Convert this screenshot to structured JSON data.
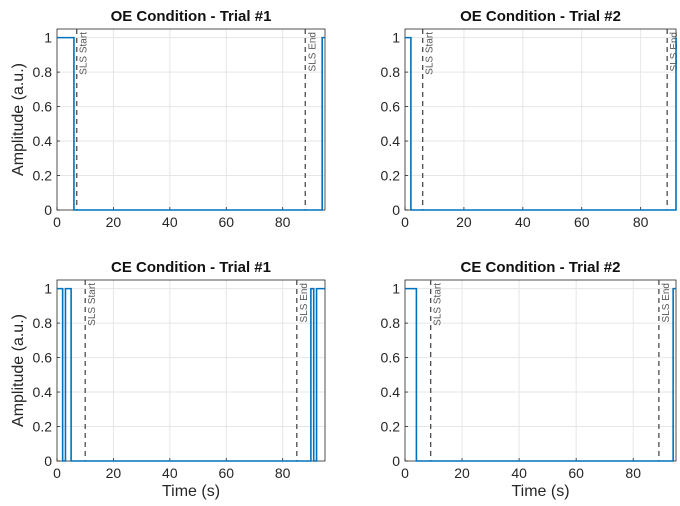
{
  "colors": {
    "signal": "#0072BD",
    "marker": "#4d4d4d",
    "grid": "#e6e6e6",
    "axis": "#262626"
  },
  "chart_data": [
    {
      "type": "line",
      "title": "OE Condition - Trial #1",
      "xlabel": "",
      "ylabel": "Amplitude (a.u.)",
      "xlim": [
        0,
        95
      ],
      "ylim": [
        0,
        1.05
      ],
      "xticks": [
        0,
        20,
        40,
        60,
        80
      ],
      "yticks": [
        0,
        0.2,
        0.4,
        0.6,
        0.8,
        1
      ],
      "xtick_labels": [
        "0",
        "20",
        "40",
        "60",
        "80"
      ],
      "ytick_labels": [
        "0",
        "0.2",
        "0.4",
        "0.6",
        "0.8",
        "1"
      ],
      "grid": true,
      "series": [
        {
          "x": [
            0,
            6,
            6,
            94,
            94,
            95
          ],
          "y": [
            1,
            1,
            0,
            0,
            1,
            1
          ]
        }
      ],
      "annotations": [
        {
          "x": 7,
          "label": "SLS Start"
        },
        {
          "x": 88,
          "label": "SLS End"
        }
      ]
    },
    {
      "type": "line",
      "title": "OE Condition - Trial #2",
      "xlabel": "",
      "ylabel": "",
      "xlim": [
        0,
        92
      ],
      "ylim": [
        0,
        1.05
      ],
      "xticks": [
        0,
        20,
        40,
        60,
        80
      ],
      "yticks": [
        0,
        0.2,
        0.4,
        0.6,
        0.8,
        1
      ],
      "xtick_labels": [
        "0",
        "20",
        "40",
        "60",
        "80"
      ],
      "ytick_labels": [
        "0",
        "0.2",
        "0.4",
        "0.6",
        "0.8",
        "1"
      ],
      "grid": true,
      "series": [
        {
          "x": [
            0,
            2,
            2,
            92,
            92
          ],
          "y": [
            1,
            1,
            0,
            0,
            1
          ]
        }
      ],
      "annotations": [
        {
          "x": 6,
          "label": "SLS Start"
        },
        {
          "x": 89,
          "label": "SLS End"
        }
      ]
    },
    {
      "type": "line",
      "title": "CE Condition - Trial #1",
      "xlabel": "Time (s)",
      "ylabel": "Amplitude (a.u.)",
      "xlim": [
        0,
        95
      ],
      "ylim": [
        0,
        1.05
      ],
      "xticks": [
        0,
        20,
        40,
        60,
        80
      ],
      "yticks": [
        0,
        0.2,
        0.4,
        0.6,
        0.8,
        1
      ],
      "xtick_labels": [
        "0",
        "20",
        "40",
        "60",
        "80"
      ],
      "ytick_labels": [
        "0",
        "0.2",
        "0.4",
        "0.6",
        "0.8",
        "1"
      ],
      "grid": true,
      "series": [
        {
          "x": [
            0,
            2,
            2,
            3,
            3,
            5,
            5,
            90,
            90,
            91,
            91,
            92,
            92,
            95
          ],
          "y": [
            1,
            1,
            0,
            0,
            1,
            1,
            0,
            0,
            1,
            1,
            0,
            0,
            1,
            1
          ]
        }
      ],
      "annotations": [
        {
          "x": 10,
          "label": "SLS Start"
        },
        {
          "x": 85,
          "label": "SLS End"
        }
      ]
    },
    {
      "type": "line",
      "title": "CE Condition - Trial #2",
      "xlabel": "Time (s)",
      "ylabel": "",
      "xlim": [
        0,
        95
      ],
      "ylim": [
        0,
        1.05
      ],
      "xticks": [
        0,
        20,
        40,
        60,
        80
      ],
      "yticks": [
        0,
        0.2,
        0.4,
        0.6,
        0.8,
        1
      ],
      "xtick_labels": [
        "0",
        "20",
        "40",
        "60",
        "80"
      ],
      "ytick_labels": [
        "0",
        "0.2",
        "0.4",
        "0.6",
        "0.8",
        "1"
      ],
      "grid": true,
      "series": [
        {
          "x": [
            0,
            4,
            4,
            94,
            94,
            95
          ],
          "y": [
            1,
            1,
            0,
            0,
            1,
            1
          ]
        }
      ],
      "annotations": [
        {
          "x": 9,
          "label": "SLS Start"
        },
        {
          "x": 89,
          "label": "SLS End"
        }
      ]
    }
  ]
}
